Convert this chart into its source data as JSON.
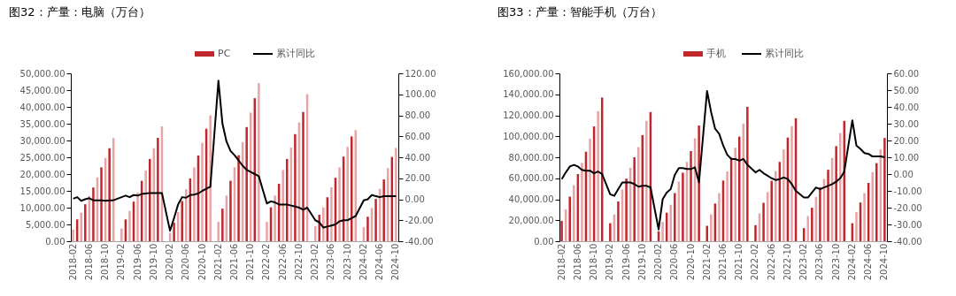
{
  "chart_data": [
    {
      "type": "bar",
      "title": "图32：产量：电脑（万台）",
      "legend": "top",
      "categories": [
        "2018-02",
        null,
        null,
        null,
        "2018-06",
        null,
        null,
        null,
        "2018-10",
        null,
        null,
        null,
        "2019-02",
        null,
        null,
        null,
        "2019-06",
        null,
        null,
        null,
        "2019-10",
        null,
        null,
        null,
        "2020-02",
        null,
        null,
        null,
        "2020-06",
        null,
        null,
        null,
        "2020-10",
        null,
        null,
        null,
        "2021-02",
        null,
        null,
        null,
        "2021-06",
        null,
        null,
        null,
        "2021-10",
        null,
        null,
        null,
        "2022-02",
        null,
        null,
        null,
        "2022-06",
        null,
        null,
        null,
        "2022-10",
        null,
        null,
        null,
        "2023-02",
        null,
        null,
        null,
        "2023-06",
        null,
        null,
        null,
        "2023-10",
        null,
        null,
        null,
        "2024-02",
        null,
        null,
        null,
        "2024-06",
        null,
        null,
        null,
        "2024-10"
      ],
      "ylim": [
        0,
        50000
      ],
      "yticks": [
        {
          "value": 0,
          "label": "0.00"
        },
        {
          "value": 5000,
          "label": "5,000.00"
        },
        {
          "value": 10000,
          "label": "10,000.00"
        },
        {
          "value": 15000,
          "label": "15,000.00"
        },
        {
          "value": 20000,
          "label": "20,000.00"
        },
        {
          "value": 25000,
          "label": "25,000.00"
        },
        {
          "value": 30000,
          "label": "30,000.00"
        },
        {
          "value": 35000,
          "label": "35,000.00"
        },
        {
          "value": 40000,
          "label": "40,000.00"
        },
        {
          "value": 45000,
          "label": "45,000.00"
        },
        {
          "value": 50000,
          "label": "50,000.00"
        }
      ],
      "y2lim": [
        -40,
        120
      ],
      "y2ticks": [
        {
          "value": -40,
          "label": "-40.00"
        },
        {
          "value": -20,
          "label": "-20.00"
        },
        {
          "value": 0,
          "label": "0.00"
        },
        {
          "value": 20,
          "label": "20.00"
        },
        {
          "value": 40,
          "label": "40.00"
        },
        {
          "value": 60,
          "label": "60.00"
        },
        {
          "value": 80,
          "label": "80.00"
        },
        {
          "value": 100,
          "label": "100.00"
        },
        {
          "value": 120,
          "label": "120.00"
        }
      ],
      "series": [
        {
          "name": "PC",
          "color": "#c0272d",
          "colors": [
            "#e8a3a6",
            "#c0272d",
            "#e8a3a6",
            "#c0272d",
            "#e8a3a6",
            "#c0272d",
            "#e8a3a6",
            "#c0272d",
            "#e8a3a6",
            "#c0272d",
            "#e8a3a6",
            null,
            "#e8a3a6",
            "#c0272d",
            "#e8a3a6",
            "#c0272d",
            "#e8a3a6",
            "#c0272d",
            "#e8a3a6",
            "#c0272d",
            "#e8a3a6",
            "#c0272d",
            "#e8a3a6",
            null,
            "#e8a3a6",
            "#c0272d",
            "#e8a3a6",
            "#c0272d",
            "#e8a3a6",
            "#c0272d",
            "#e8a3a6",
            "#c0272d",
            "#e8a3a6",
            "#c0272d",
            "#e8a3a6",
            null,
            "#e8a3a6",
            "#c0272d",
            "#e8a3a6",
            "#c0272d",
            "#e8a3a6",
            "#c0272d",
            "#e8a3a6",
            "#c0272d",
            "#e8a3a6",
            "#c0272d",
            "#e8a3a6",
            null,
            "#e8a3a6",
            "#c0272d",
            "#e8a3a6",
            "#c0272d",
            "#e8a3a6",
            "#c0272d",
            "#e8a3a6",
            "#c0272d",
            "#e8a3a6",
            "#c0272d",
            "#e8a3a6",
            null,
            "#e8a3a6",
            "#c0272d",
            "#e8a3a6",
            "#c0272d",
            "#e8a3a6",
            "#c0272d",
            "#e8a3a6",
            "#c0272d",
            "#e8a3a6",
            "#c0272d",
            "#e8a3a6",
            null,
            "#e8a3a6",
            "#c0272d",
            "#e8a3a6",
            "#c0272d",
            "#e8a3a6",
            "#c0272d",
            "#e8a3a6",
            "#c0272d",
            "#e8a3a6"
          ],
          "values": [
            3500,
            6500,
            8500,
            11000,
            13500,
            16000,
            19000,
            22000,
            24800,
            27700,
            30700,
            null,
            3800,
            6500,
            9000,
            11800,
            14500,
            18000,
            21000,
            24500,
            27700,
            30800,
            34200,
            null,
            2500,
            5500,
            8700,
            12000,
            15500,
            18700,
            22000,
            25500,
            29300,
            33500,
            37500,
            null,
            5800,
            9700,
            13600,
            18000,
            22000,
            25600,
            29500,
            34000,
            38300,
            42600,
            47100,
            null,
            5800,
            10100,
            13600,
            17100,
            21200,
            24500,
            27900,
            31900,
            35400,
            38500,
            43800,
            null,
            4500,
            7900,
            10100,
            13100,
            16100,
            18900,
            22000,
            25200,
            28100,
            31200,
            33100,
            null,
            4200,
            7300,
            9900,
            12600,
            15600,
            18400,
            21800,
            25100,
            27800
          ]
        },
        {
          "name": "累计同比",
          "type": "line",
          "color": "#000000",
          "axis": "y2",
          "values": [
            0.5,
            2,
            -1.5,
            0,
            1,
            -1,
            -1,
            -1,
            -1.5,
            -1,
            -1,
            null,
            2,
            3.5,
            2,
            4,
            3.5,
            5,
            5.5,
            6,
            6,
            6,
            6,
            null,
            -30,
            -18,
            -5,
            2,
            1.5,
            4,
            4.5,
            5.5,
            8,
            10,
            12,
            null,
            113,
            72,
            55,
            46,
            42,
            37,
            32,
            28,
            26,
            24,
            22,
            null,
            -4,
            -2,
            -3,
            -5,
            -5,
            -5,
            -6,
            -7,
            -8,
            -10,
            -8,
            null,
            -20,
            -22,
            -27,
            -26,
            -25,
            -24,
            -21,
            -20,
            -20,
            -18,
            -16,
            null,
            -1,
            0,
            4,
            3,
            2,
            3,
            3,
            3,
            3
          ]
        }
      ]
    },
    {
      "type": "bar",
      "title": "图33：产量：智能手机（万台）",
      "legend": "top",
      "categories": [
        "2018-02",
        null,
        null,
        null,
        "2018-06",
        null,
        null,
        null,
        "2018-10",
        null,
        null,
        null,
        "2019-02",
        null,
        null,
        null,
        "2019-06",
        null,
        null,
        null,
        "2019-10",
        null,
        null,
        null,
        "2020-02",
        null,
        null,
        null,
        "2020-06",
        null,
        null,
        null,
        "2020-10",
        null,
        null,
        null,
        "2021-02",
        null,
        null,
        null,
        "2021-06",
        null,
        null,
        null,
        "2021-10",
        null,
        null,
        null,
        "2022-02",
        null,
        null,
        null,
        "2022-06",
        null,
        null,
        null,
        "2022-10",
        null,
        null,
        null,
        "2023-02",
        null,
        null,
        null,
        "2023-06",
        null,
        null,
        null,
        "2023-10",
        null,
        null,
        null,
        "2024-02",
        null,
        null,
        null,
        "2024-06",
        null,
        null,
        null,
        "2024-10"
      ],
      "ylim": [
        0,
        160000
      ],
      "yticks": [
        {
          "value": 0,
          "label": "0.00"
        },
        {
          "value": 20000,
          "label": "20,000.00"
        },
        {
          "value": 40000,
          "label": "40,000.00"
        },
        {
          "value": 60000,
          "label": "60,000.00"
        },
        {
          "value": 80000,
          "label": "80,000.00"
        },
        {
          "value": 100000,
          "label": "100,000.00"
        },
        {
          "value": 120000,
          "label": "120,000.00"
        },
        {
          "value": 140000,
          "label": "140,000.00"
        },
        {
          "value": 160000,
          "label": "160,000.00"
        }
      ],
      "y2lim": [
        -40,
        60
      ],
      "y2ticks": [
        {
          "value": -40,
          "label": "-40.00"
        },
        {
          "value": -30,
          "label": "-30.00"
        },
        {
          "value": -20,
          "label": "-20.00"
        },
        {
          "value": -10,
          "label": "-10.00"
        },
        {
          "value": 0,
          "label": "0.00"
        },
        {
          "value": 10,
          "label": "10.00"
        },
        {
          "value": 20,
          "label": "20.00"
        },
        {
          "value": 30,
          "label": "30.00"
        },
        {
          "value": 40,
          "label": "40.00"
        },
        {
          "value": 50,
          "label": "50.00"
        },
        {
          "value": 60,
          "label": "60.00"
        }
      ],
      "series": [
        {
          "name": "手机",
          "color": "#c0272d",
          "colors": [
            "#c0272d",
            "#e8a3a6",
            "#c0272d",
            "#e8a3a6",
            "#c0272d",
            "#e8a3a6",
            "#c0272d",
            "#e8a3a6",
            "#c0272d",
            "#e8a3a6",
            "#c0272d",
            null,
            "#c0272d",
            "#e8a3a6",
            "#c0272d",
            "#e8a3a6",
            "#c0272d",
            "#e8a3a6",
            "#c0272d",
            "#e8a3a6",
            "#c0272d",
            "#e8a3a6",
            "#c0272d",
            null,
            "#c0272d",
            "#e8a3a6",
            "#c0272d",
            "#e8a3a6",
            "#c0272d",
            "#e8a3a6",
            "#c0272d",
            "#e8a3a6",
            "#c0272d",
            "#e8a3a6",
            "#c0272d",
            null,
            "#c0272d",
            "#e8a3a6",
            "#c0272d",
            "#e8a3a6",
            "#c0272d",
            "#e8a3a6",
            "#c0272d",
            "#e8a3a6",
            "#c0272d",
            "#e8a3a6",
            "#c0272d",
            null,
            "#c0272d",
            "#e8a3a6",
            "#c0272d",
            "#e8a3a6",
            "#c0272d",
            "#e8a3a6",
            "#c0272d",
            "#e8a3a6",
            "#c0272d",
            "#e8a3a6",
            "#c0272d",
            null,
            "#c0272d",
            "#e8a3a6",
            "#c0272d",
            "#e8a3a6",
            "#c0272d",
            "#e8a3a6",
            "#c0272d",
            "#e8a3a6",
            "#c0272d",
            "#e8a3a6",
            "#c0272d",
            null,
            "#c0272d",
            "#e8a3a6",
            "#c0272d",
            "#e8a3a6",
            "#c0272d",
            "#e8a3a6",
            "#c0272d",
            "#e8a3a6",
            "#c0272d"
          ],
          "values": [
            19400,
            30300,
            42500,
            53400,
            64000,
            74700,
            85300,
            97800,
            109400,
            124000,
            136900,
            null,
            17200,
            25600,
            37800,
            49400,
            59700,
            70000,
            80000,
            89700,
            101200,
            114700,
            123100,
            null,
            9400,
            18400,
            27200,
            34700,
            45900,
            56900,
            65300,
            75600,
            85900,
            98100,
            110300,
            null,
            14700,
            25600,
            35900,
            45900,
            57800,
            66600,
            79700,
            89100,
            99700,
            112200,
            128100,
            null,
            15300,
            26600,
            36600,
            46900,
            57500,
            66900,
            75600,
            87500,
            98800,
            109700,
            117200,
            null,
            12500,
            24100,
            31900,
            42200,
            51300,
            59400,
            68100,
            79400,
            90600,
            103100,
            114700,
            null,
            17200,
            27800,
            36900,
            45900,
            55600,
            65900,
            74400,
            87500,
            98400
          ]
        },
        {
          "name": "累计同比",
          "type": "line",
          "color": "#000000",
          "axis": "y2",
          "values": [
            -3,
            1,
            4.5,
            5.5,
            4.5,
            2.5,
            2,
            2,
            0.5,
            1.5,
            0,
            null,
            -12,
            -13,
            -9,
            -5,
            -5,
            -5,
            -6,
            -7.5,
            -7,
            -7,
            -8,
            null,
            -33,
            -15,
            -11,
            -9,
            -0.5,
            3.5,
            3.5,
            3,
            3,
            4,
            -5,
            null,
            49.5,
            37,
            27,
            24,
            17,
            11.5,
            9,
            9,
            8,
            9,
            5.5,
            null,
            1,
            2.5,
            0.5,
            -1,
            -2.5,
            -3.5,
            -3,
            -2,
            -3,
            -6,
            -10,
            null,
            -14,
            -14,
            -11,
            -8,
            -9,
            -8,
            -7,
            -6,
            -4.5,
            -2.5,
            1.5,
            null,
            32,
            17,
            15,
            12.5,
            12,
            10.5,
            10.5,
            10.5,
            10
          ]
        }
      ]
    }
  ]
}
